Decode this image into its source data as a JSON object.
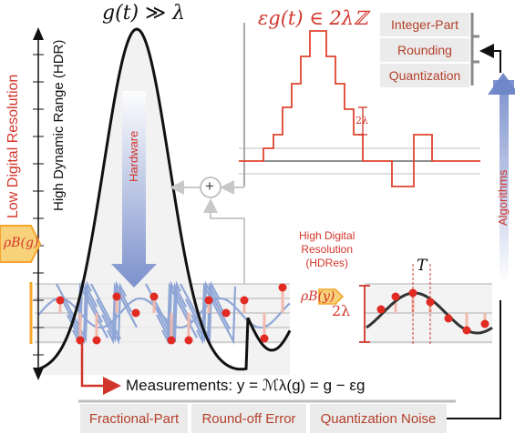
{
  "title_left": {
    "lhs": "g(t)",
    "rel": "≫",
    "rhs": "λ"
  },
  "title_right": {
    "text": "εg(t) ∈ 2λℤ"
  },
  "vertical_labels": {
    "ldr": "Low Digital Resolution",
    "hdr": "High Dynamic Range (HDR)",
    "hardware": "Hardware",
    "algorithms": "Algorithms"
  },
  "badges": {
    "left": "ρB(g)",
    "right": "ρB(y)"
  },
  "step_annotation": "2λ",
  "hdres_label": [
    "High Digital",
    "Resolution",
    "(HDRes)"
  ],
  "small_plot": {
    "period_label": "T",
    "amplitude_label": "2λ"
  },
  "adder_symbol": "+",
  "algorithm_boxes": [
    "Integer-Part",
    "Rounding",
    "Quantization"
  ],
  "bottom_boxes": [
    "Fractional-Part",
    "Round-off Error",
    "Quantization Noise"
  ],
  "measurement_text": "Measurements: y = ℳλ(g) = g − εg",
  "colors": {
    "accent": "#d2352b",
    "curve": "#111111",
    "folded": "#8fa6d6",
    "box_bg": "#ebebeb",
    "label": "#b4402a",
    "badge": "#f6a52b"
  }
}
